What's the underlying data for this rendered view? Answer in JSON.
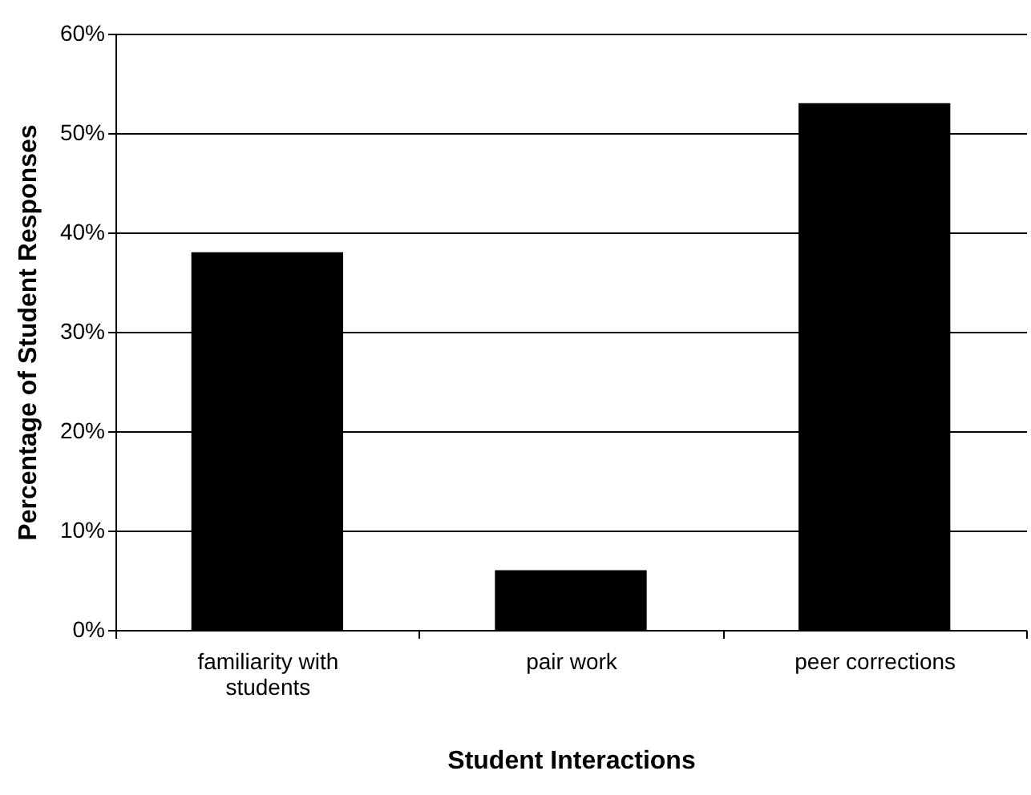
{
  "chart_data": {
    "type": "bar",
    "xlabel": "Student Interactions",
    "ylabel": "Percentage of Student Responses",
    "categories": [
      "familiarity with students",
      "pair work",
      "peer corrections"
    ],
    "values": [
      38,
      6,
      53
    ],
    "color": "#000000",
    "ylim": [
      0,
      60
    ],
    "yticks": [
      {
        "value": 0,
        "label": "0%"
      },
      {
        "value": 10,
        "label": "10%"
      },
      {
        "value": 20,
        "label": "20%"
      },
      {
        "value": 30,
        "label": "30%"
      },
      {
        "value": 40,
        "label": "40%"
      },
      {
        "value": 50,
        "label": "50%"
      },
      {
        "value": 60,
        "label": "60%"
      }
    ],
    "grid": "y"
  }
}
